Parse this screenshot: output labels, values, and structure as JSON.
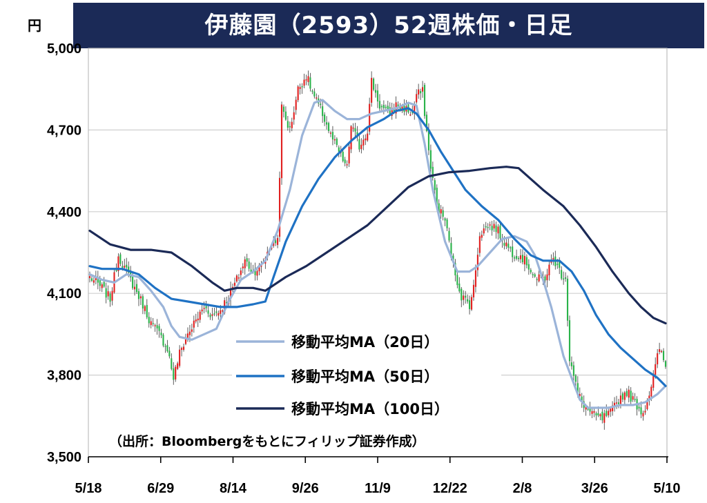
{
  "chart_data": {
    "type": "candlestick",
    "title": "伊藤園（2593）52週株価・日足",
    "yunit": "円",
    "ylim": [
      3500,
      5000
    ],
    "yticks": [
      "5,000",
      "4,700",
      "4,400",
      "4,100",
      "3,800",
      "3,500"
    ],
    "ytick_values": [
      5000,
      4700,
      4400,
      4100,
      3800,
      3500
    ],
    "xticks": [
      "5/18",
      "6/29",
      "8/14",
      "9/26",
      "11/9",
      "12/22",
      "2/8",
      "3/26",
      "5/10"
    ],
    "grid": true,
    "legend_position": "bottom-center",
    "source": "（出所：Bloombergをもとにフィリップ証券作成）",
    "colors": {
      "up": "#e02020",
      "down": "#2ab34a",
      "ma20": "#9bb4d9",
      "ma50": "#1f72c4",
      "ma100": "#1b2a57",
      "title_bg": "#1b2a57"
    },
    "candle_anchors": [
      [
        0,
        4160
      ],
      [
        6,
        4120
      ],
      [
        10,
        4080
      ],
      [
        14,
        4240
      ],
      [
        18,
        4180
      ],
      [
        22,
        4120
      ],
      [
        26,
        4060
      ],
      [
        30,
        3990
      ],
      [
        34,
        3950
      ],
      [
        38,
        3900
      ],
      [
        41,
        3790
      ],
      [
        44,
        3880
      ],
      [
        48,
        3950
      ],
      [
        52,
        4000
      ],
      [
        56,
        4050
      ],
      [
        60,
        4020
      ],
      [
        64,
        4040
      ],
      [
        68,
        4090
      ],
      [
        72,
        4150
      ],
      [
        76,
        4220
      ],
      [
        80,
        4180
      ],
      [
        84,
        4200
      ],
      [
        88,
        4270
      ],
      [
        92,
        4300
      ],
      [
        94,
        4780
      ],
      [
        98,
        4700
      ],
      [
        102,
        4850
      ],
      [
        106,
        4900
      ],
      [
        110,
        4820
      ],
      [
        114,
        4760
      ],
      [
        118,
        4680
      ],
      [
        122,
        4620
      ],
      [
        126,
        4560
      ],
      [
        128,
        4720
      ],
      [
        132,
        4640
      ],
      [
        136,
        4700
      ],
      [
        138,
        4880
      ],
      [
        142,
        4790
      ],
      [
        146,
        4760
      ],
      [
        150,
        4790
      ],
      [
        154,
        4780
      ],
      [
        158,
        4760
      ],
      [
        160,
        4830
      ],
      [
        163,
        4840
      ],
      [
        166,
        4620
      ],
      [
        170,
        4420
      ],
      [
        174,
        4370
      ],
      [
        178,
        4200
      ],
      [
        182,
        4090
      ],
      [
        186,
        4060
      ],
      [
        188,
        4120
      ],
      [
        191,
        4320
      ],
      [
        195,
        4350
      ],
      [
        199,
        4340
      ],
      [
        203,
        4290
      ],
      [
        207,
        4250
      ],
      [
        211,
        4240
      ],
      [
        215,
        4200
      ],
      [
        219,
        4150
      ],
      [
        223,
        4160
      ],
      [
        227,
        4230
      ],
      [
        231,
        4170
      ],
      [
        233,
        4160
      ],
      [
        235,
        3860
      ],
      [
        239,
        3730
      ],
      [
        243,
        3680
      ],
      [
        247,
        3650
      ],
      [
        251,
        3640
      ],
      [
        255,
        3660
      ],
      [
        259,
        3710
      ],
      [
        263,
        3740
      ],
      [
        267,
        3700
      ],
      [
        271,
        3660
      ],
      [
        275,
        3760
      ],
      [
        279,
        3900
      ],
      [
        282,
        3830
      ]
    ],
    "series": [
      {
        "name": "移動平均MA（20日）",
        "x": [
          0,
          6,
          12,
          18,
          24,
          30,
          36,
          40,
          44,
          50,
          56,
          62,
          68,
          74,
          80,
          86,
          92,
          98,
          104,
          110,
          114,
          120,
          126,
          132,
          138,
          144,
          150,
          156,
          160,
          164,
          168,
          174,
          180,
          186,
          190,
          196,
          202,
          208,
          214,
          218,
          222,
          226,
          232,
          240,
          244,
          248,
          254,
          260,
          266,
          272,
          278,
          282
        ],
        "values": [
          4170,
          4150,
          4140,
          4170,
          4160,
          4110,
          4050,
          3980,
          3940,
          3930,
          3950,
          3970,
          4070,
          4150,
          4180,
          4220,
          4330,
          4480,
          4680,
          4800,
          4810,
          4770,
          4740,
          4740,
          4760,
          4770,
          4780,
          4800,
          4790,
          4650,
          4480,
          4290,
          4180,
          4180,
          4200,
          4250,
          4300,
          4310,
          4290,
          4240,
          4150,
          4050,
          3870,
          3710,
          3680,
          3680,
          3680,
          3690,
          3690,
          3700,
          3730,
          3760
        ]
      },
      {
        "name": "移動平均MA（50日）",
        "x": [
          0,
          6,
          16,
          24,
          32,
          40,
          48,
          56,
          64,
          72,
          80,
          86,
          90,
          96,
          104,
          112,
          120,
          128,
          136,
          144,
          150,
          156,
          160,
          166,
          172,
          178,
          184,
          192,
          200,
          208,
          216,
          222,
          230,
          236,
          242,
          248,
          254,
          260,
          266,
          272,
          278,
          282
        ],
        "values": [
          4200,
          4190,
          4190,
          4170,
          4120,
          4080,
          4070,
          4060,
          4050,
          4050,
          4060,
          4070,
          4160,
          4290,
          4420,
          4520,
          4600,
          4660,
          4710,
          4740,
          4770,
          4780,
          4760,
          4700,
          4620,
          4550,
          4480,
          4420,
          4370,
          4300,
          4240,
          4220,
          4220,
          4180,
          4110,
          4020,
          3950,
          3900,
          3860,
          3820,
          3790,
          3760
        ]
      },
      {
        "name": "移動平均MA（100日）",
        "x": [
          0,
          10,
          20,
          30,
          40,
          50,
          60,
          66,
          72,
          80,
          86,
          96,
          106,
          116,
          126,
          136,
          146,
          156,
          166,
          176,
          186,
          196,
          204,
          210,
          216,
          222,
          232,
          240,
          248,
          256,
          264,
          270,
          276,
          282
        ],
        "values": [
          4330,
          4280,
          4260,
          4260,
          4250,
          4200,
          4140,
          4110,
          4120,
          4120,
          4110,
          4160,
          4200,
          4250,
          4300,
          4350,
          4420,
          4490,
          4530,
          4545,
          4550,
          4560,
          4565,
          4560,
          4520,
          4480,
          4420,
          4350,
          4270,
          4180,
          4100,
          4050,
          4010,
          3990
        ]
      }
    ]
  }
}
